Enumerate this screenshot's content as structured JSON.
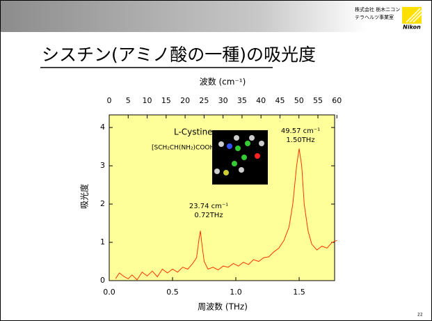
{
  "header": {
    "company": "株式会社 栃木ニコン",
    "department": "テラヘルツ事業室",
    "logo": "Nikon"
  },
  "page_number": "22",
  "chart_data": {
    "type": "line",
    "title": "シスチン(アミノ酸の一種)の吸光度",
    "x_label": "周波数 (THz)",
    "x2_label": "波数 (cm⁻¹)",
    "y_label": "吸光度",
    "annotations": [
      "L-Cystine",
      "[SCH₂CH(NH₂)COOH]₂",
      "23.74 cm⁻¹",
      "0.72THz",
      "49.57 cm⁻¹",
      "1.50THz"
    ],
    "color": "#ff3300",
    "background": "#ffff99",
    "x": [
      0.05,
      0.08,
      0.12,
      0.15,
      0.18,
      0.22,
      0.26,
      0.3,
      0.34,
      0.38,
      0.42,
      0.46,
      0.5,
      0.54,
      0.58,
      0.62,
      0.66,
      0.69,
      0.71,
      0.72,
      0.73,
      0.75,
      0.78,
      0.82,
      0.86,
      0.9,
      0.94,
      0.98,
      1.02,
      1.06,
      1.1,
      1.14,
      1.18,
      1.22,
      1.26,
      1.3,
      1.34,
      1.38,
      1.42,
      1.45,
      1.48,
      1.5,
      1.52,
      1.54,
      1.57,
      1.6,
      1.64,
      1.68,
      1.72,
      1.76,
      1.8
    ],
    "values": [
      0.05,
      0.2,
      0.1,
      0.05,
      0.15,
      0.02,
      0.22,
      0.12,
      0.25,
      0.1,
      0.3,
      0.2,
      0.3,
      0.22,
      0.35,
      0.3,
      0.45,
      0.6,
      1.1,
      1.3,
      1.0,
      0.5,
      0.3,
      0.35,
      0.28,
      0.38,
      0.35,
      0.45,
      0.38,
      0.48,
      0.42,
      0.55,
      0.5,
      0.6,
      0.62,
      0.75,
      0.85,
      1.05,
      1.4,
      2.0,
      3.0,
      3.45,
      3.0,
      2.0,
      1.3,
      0.95,
      0.8,
      0.9,
      0.85,
      1.0,
      1.05
    ],
    "xlim": [
      0,
      1.78
    ],
    "xticks": [
      {
        "value": 0,
        "label": "0.0"
      },
      0.5,
      {
        "value": 1,
        "label": "1.0"
      },
      1.5
    ],
    "x2lim": [
      0,
      59.4
    ],
    "x2ticks": [
      0,
      5,
      10,
      15,
      20,
      25,
      30,
      35,
      40,
      45,
      50,
      55,
      60
    ],
    "ylim": [
      0,
      4.33
    ],
    "yticks": [
      0,
      1,
      2,
      3,
      4
    ]
  }
}
